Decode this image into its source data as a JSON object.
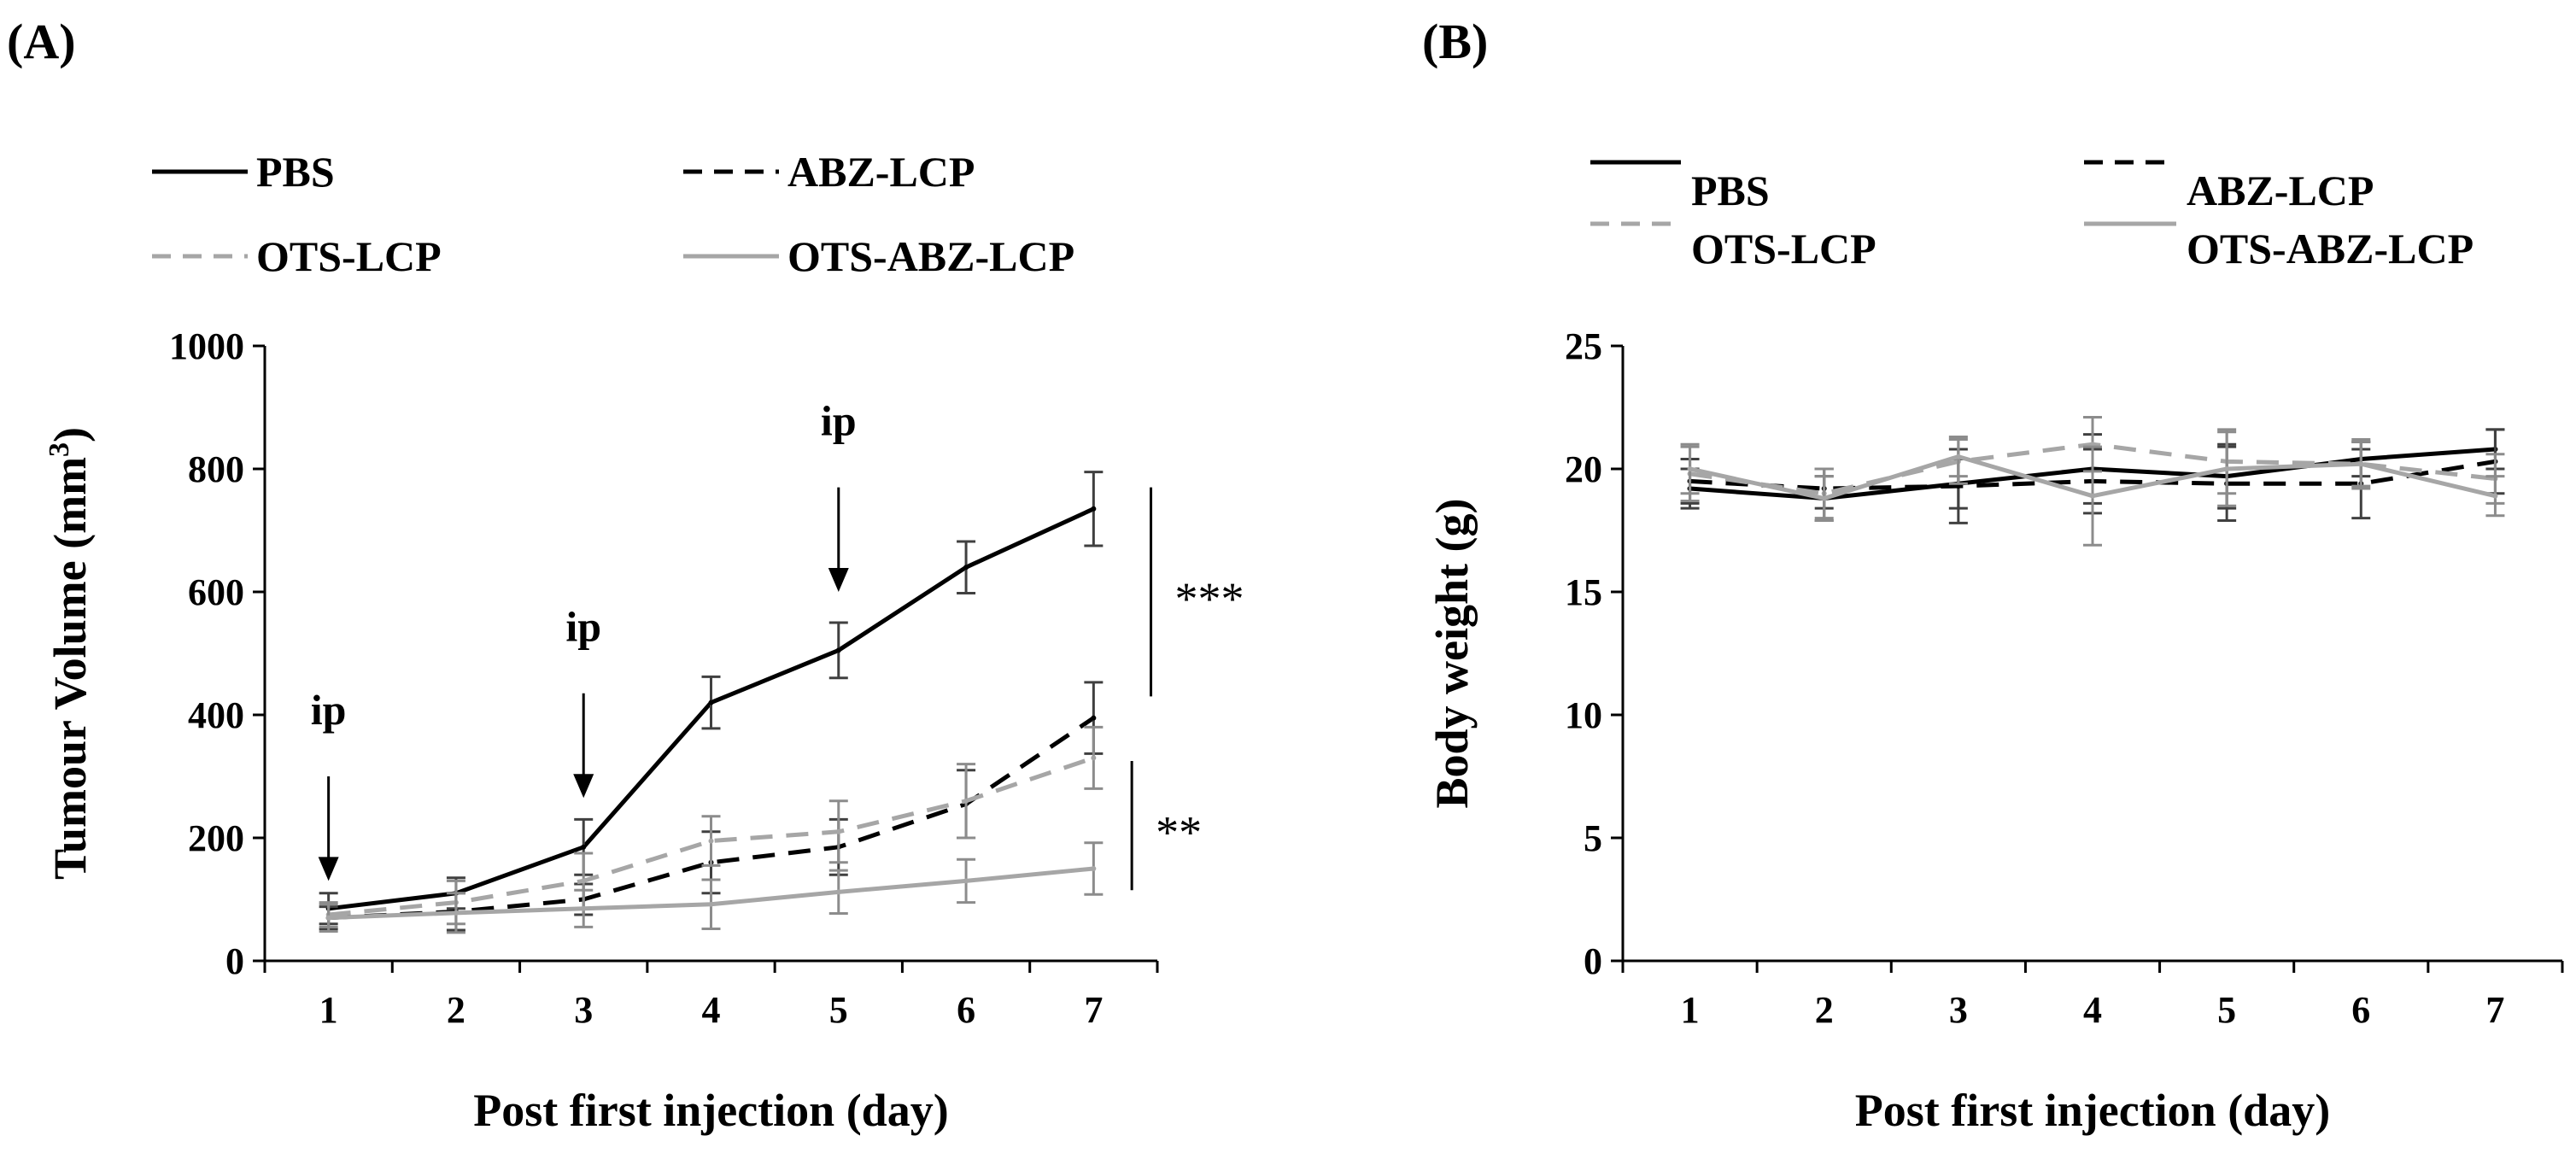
{
  "chart_data": [
    {
      "type": "line",
      "panel_label": "(A)",
      "xlabel": "Post first injection (day)",
      "ylabel_main": "Tumour Volume (mm",
      "ylabel_sup": "3",
      "ylabel_close": ")",
      "x": [
        1,
        2,
        3,
        4,
        5,
        6,
        7
      ],
      "xlim": [
        0.5,
        7.5
      ],
      "ylim": [
        0,
        1000
      ],
      "yticks": [
        0,
        200,
        400,
        600,
        800,
        1000
      ],
      "legend_position": "top",
      "series": [
        {
          "name": "PBS",
          "color": "#000000",
          "dash": "solid",
          "values": [
            85,
            110,
            185,
            420,
            505,
            640,
            735
          ],
          "errors": [
            25,
            25,
            45,
            42,
            45,
            42,
            60
          ]
        },
        {
          "name": "ABZ-LCP",
          "color": "#000000",
          "dash": "dashed",
          "values": [
            70,
            80,
            100,
            160,
            185,
            255,
            395
          ],
          "errors": [
            18,
            30,
            25,
            50,
            45,
            55,
            58
          ]
        },
        {
          "name": "OTS-LCP",
          "color": "#a6a6a6",
          "dash": "dashed",
          "values": [
            75,
            95,
            130,
            195,
            210,
            260,
            330
          ],
          "errors": [
            20,
            35,
            45,
            40,
            50,
            60,
            50
          ]
        },
        {
          "name": "OTS-ABZ-LCP",
          "color": "#a6a6a6",
          "dash": "solid",
          "values": [
            70,
            78,
            85,
            92,
            112,
            130,
            150
          ],
          "errors": [
            22,
            32,
            30,
            40,
            35,
            35,
            42
          ]
        }
      ],
      "annotations": [
        {
          "text": "ip",
          "x": 1,
          "arrow_from": 300,
          "arrow_to": 130,
          "text_y": 385
        },
        {
          "text": "ip",
          "x": 3,
          "arrow_from": 435,
          "arrow_to": 265,
          "text_y": 520
        },
        {
          "text": "ip",
          "x": 5,
          "arrow_from": 770,
          "arrow_to": 600,
          "text_y": 855
        }
      ],
      "significance": [
        {
          "text": "***",
          "x_pos": 7.45,
          "y_from": 430,
          "y_to": 770
        },
        {
          "text": "**",
          "x_pos": 7.3,
          "y_from": 115,
          "y_to": 325
        }
      ]
    },
    {
      "type": "line",
      "panel_label": "(B)",
      "xlabel": "Post first injection (day)",
      "ylabel": "Body weight (g)",
      "x": [
        1,
        2,
        3,
        4,
        5,
        6,
        7
      ],
      "xlim": [
        0.5,
        7.5
      ],
      "ylim": [
        0,
        25
      ],
      "yticks": [
        0,
        5,
        10,
        15,
        20,
        25
      ],
      "legend_position": "top",
      "series": [
        {
          "name": "PBS",
          "color": "#000000",
          "dash": "solid",
          "values": [
            19.2,
            18.8,
            19.4,
            20.0,
            19.7,
            20.4,
            20.8
          ],
          "errors": [
            0.8,
            0.9,
            1.0,
            1.4,
            1.3,
            0.7,
            0.8
          ]
        },
        {
          "name": "ABZ-LCP",
          "color": "#000000",
          "dash": "dashed",
          "values": [
            19.5,
            19.2,
            19.3,
            19.5,
            19.4,
            19.4,
            20.3
          ],
          "errors": [
            0.9,
            0.8,
            1.5,
            1.3,
            1.5,
            1.4,
            1.3
          ]
        },
        {
          "name": "OTS-LCP",
          "color": "#a6a6a6",
          "dash": "dashed",
          "values": [
            19.8,
            19.0,
            20.3,
            21.0,
            20.3,
            20.2,
            19.6
          ],
          "errors": [
            1.1,
            1.0,
            0.9,
            1.1,
            1.3,
            0.9,
            1.0
          ]
        },
        {
          "name": "OTS-ABZ-LCP",
          "color": "#a6a6a6",
          "dash": "solid",
          "values": [
            20.0,
            18.8,
            20.5,
            18.9,
            20.0,
            20.2,
            18.9
          ],
          "errors": [
            1.0,
            0.9,
            0.8,
            2.0,
            1.5,
            1.0,
            0.8
          ]
        }
      ]
    }
  ]
}
